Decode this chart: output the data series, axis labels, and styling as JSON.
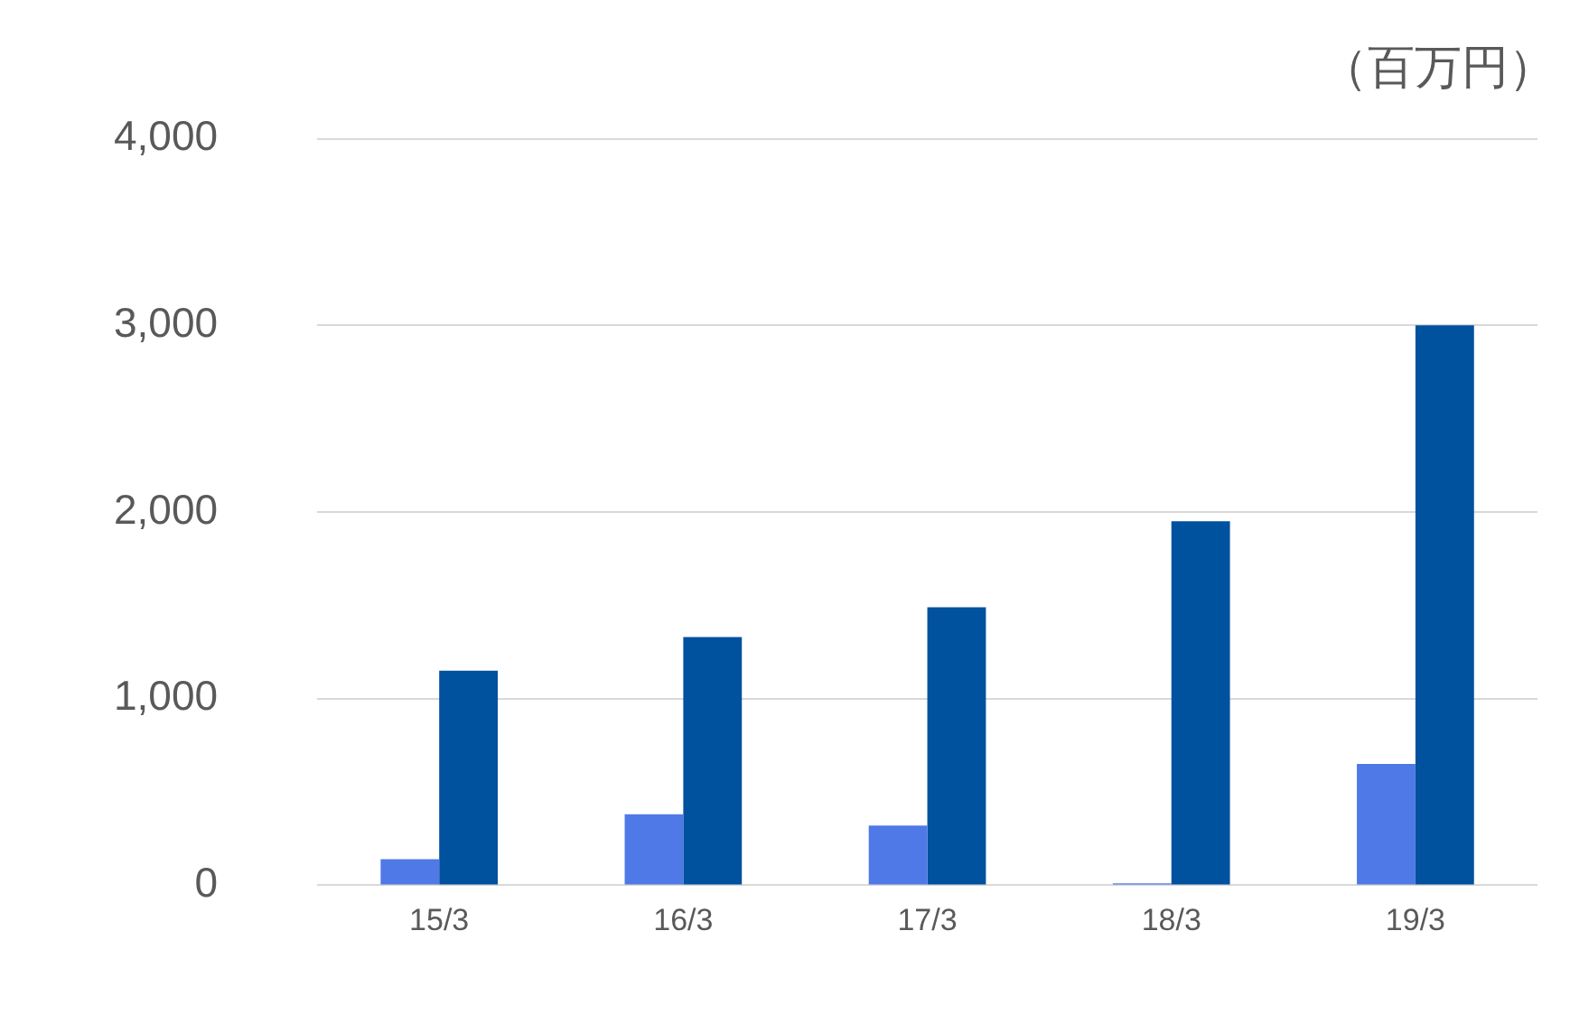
{
  "chart_data": {
    "type": "bar",
    "ylabel": "（百万円）",
    "categories": [
      "15/3",
      "16/3",
      "17/3",
      "18/3",
      "19/3"
    ],
    "series": [
      {
        "color": "#4e79e7",
        "values": [
          140,
          380,
          320,
          10,
          650
        ]
      },
      {
        "color": "#00519e",
        "values": [
          1150,
          1330,
          1490,
          1950,
          3000
        ]
      }
    ],
    "ylim": [
      0,
      4000
    ],
    "yticks": [
      {
        "value": 0,
        "label": "0"
      },
      {
        "value": 1000,
        "label": "1,000"
      },
      {
        "value": 2000,
        "label": "2,000"
      },
      {
        "value": 3000,
        "label": "3,000"
      },
      {
        "value": 4000,
        "label": "4,000"
      }
    ],
    "grid": "y",
    "legend": false
  }
}
